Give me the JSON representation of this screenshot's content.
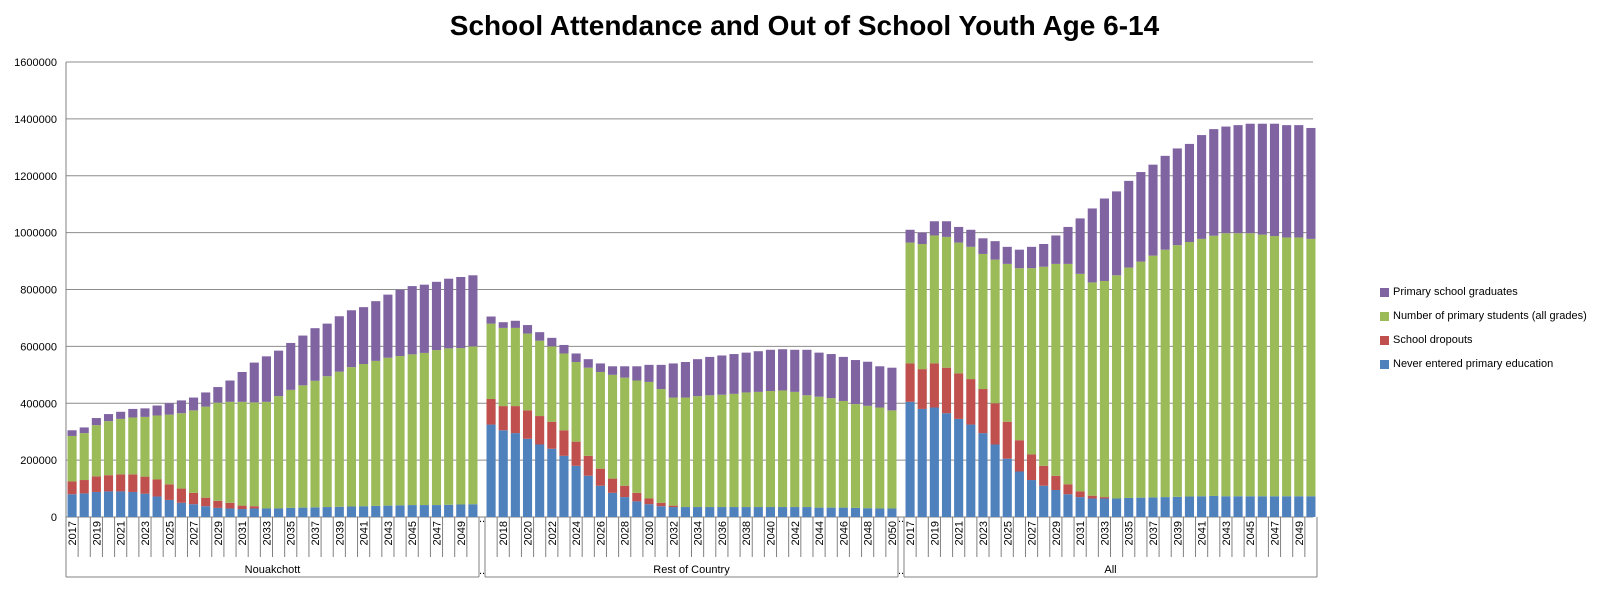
{
  "chart_data": {
    "type": "bar",
    "stacked": true,
    "title": "School Attendance and Out of School Youth Age 6-14",
    "xlabel": "",
    "ylabel": "",
    "ylim": [
      0,
      1600000
    ],
    "y_ticks": [
      0,
      200000,
      400000,
      600000,
      800000,
      1000000,
      1200000,
      1400000,
      1600000
    ],
    "y_tick_labels": [
      "0",
      "200000",
      "400000",
      "600000",
      "800000",
      "1000000",
      "1200000",
      "1400000",
      "1600000"
    ],
    "grid": true,
    "legend_position": "right",
    "groups": [
      {
        "name": "Nouakchott",
        "years": [
          "2017",
          "2018",
          "2019",
          "2020",
          "2021",
          "2022",
          "2023",
          "2024",
          "2025",
          "2026",
          "2027",
          "2028",
          "2029",
          "2030",
          "2031",
          "2032",
          "2033",
          "2034",
          "2035",
          "2036",
          "2037",
          "2038",
          "2039",
          "2040",
          "2041",
          "2042",
          "2043",
          "2044",
          "2045",
          "2046",
          "2047",
          "2048",
          "2049",
          "2050"
        ],
        "tick_labels": [
          "2017",
          "",
          "2019",
          "",
          "2021",
          "",
          "2023",
          "",
          "2025",
          "",
          "2027",
          "",
          "2029",
          "",
          "2031",
          "",
          "2033",
          "",
          "2035",
          "",
          "2037",
          "",
          "2039",
          "",
          "2041",
          "",
          "2043",
          "",
          "2045",
          "",
          "2047",
          "",
          "2049",
          ""
        ],
        "series": {
          "never": [
            80000,
            83000,
            88000,
            90000,
            90000,
            88000,
            82000,
            72000,
            60000,
            50000,
            45000,
            38000,
            32000,
            30000,
            28000,
            30000,
            30000,
            30000,
            32000,
            33000,
            34000,
            35000,
            36000,
            37000,
            38000,
            39000,
            40000,
            41000,
            42000,
            42000,
            42000,
            43000,
            44000,
            45000
          ],
          "dropouts": [
            45000,
            47000,
            55000,
            57000,
            60000,
            62000,
            60000,
            60000,
            55000,
            50000,
            40000,
            30000,
            25000,
            20000,
            12000,
            8000,
            0,
            0,
            0,
            0,
            0,
            0,
            0,
            0,
            0,
            0,
            0,
            0,
            0,
            0,
            0,
            0,
            0,
            0
          ],
          "students": [
            160000,
            165000,
            180000,
            190000,
            195000,
            200000,
            210000,
            225000,
            245000,
            265000,
            290000,
            320000,
            345000,
            355000,
            365000,
            365000,
            375000,
            395000,
            415000,
            430000,
            445000,
            460000,
            475000,
            490000,
            500000,
            510000,
            520000,
            525000,
            530000,
            535000,
            545000,
            550000,
            550000,
            555000
          ],
          "graduates": [
            20000,
            20000,
            25000,
            25000,
            25000,
            30000,
            30000,
            35000,
            40000,
            45000,
            45000,
            50000,
            55000,
            75000,
            105000,
            140000,
            160000,
            160000,
            165000,
            175000,
            185000,
            185000,
            195000,
            200000,
            200000,
            210000,
            222000,
            233000,
            240000,
            240000,
            240000,
            245000,
            250000,
            250000
          ]
        }
      },
      {
        "name": "Rest of Country",
        "years": [
          "2017",
          "2018",
          "2019",
          "2020",
          "2021",
          "2022",
          "2023",
          "2024",
          "2025",
          "2026",
          "2027",
          "2028",
          "2029",
          "2030",
          "2031",
          "2032",
          "2033",
          "2034",
          "2035",
          "2036",
          "2037",
          "2038",
          "2039",
          "2040",
          "2041",
          "2042",
          "2043",
          "2044",
          "2045",
          "2046",
          "2047",
          "2048",
          "2049",
          "2050"
        ],
        "tick_labels": [
          "",
          "2018",
          "",
          "2020",
          "",
          "2022",
          "",
          "2024",
          "",
          "2026",
          "",
          "2028",
          "",
          "2030",
          "",
          "2032",
          "",
          "2034",
          "",
          "2036",
          "",
          "2038",
          "",
          "2040",
          "",
          "2042",
          "",
          "2044",
          "",
          "2046",
          "",
          "2048",
          "",
          "2050"
        ],
        "series": {
          "never": [
            325000,
            305000,
            295000,
            275000,
            255000,
            240000,
            215000,
            180000,
            145000,
            110000,
            85000,
            70000,
            55000,
            45000,
            38000,
            35000,
            35000,
            35000,
            35000,
            35000,
            35000,
            35000,
            35000,
            35000,
            35000,
            35000,
            35000,
            33000,
            33000,
            33000,
            32000,
            31000,
            30000,
            30000
          ],
          "dropouts": [
            90000,
            85000,
            95000,
            100000,
            100000,
            95000,
            90000,
            85000,
            70000,
            60000,
            50000,
            40000,
            30000,
            20000,
            12000,
            5000,
            0,
            0,
            0,
            0,
            0,
            0,
            0,
            0,
            0,
            0,
            0,
            0,
            0,
            0,
            0,
            0,
            0,
            0
          ],
          "students": [
            265000,
            275000,
            275000,
            270000,
            265000,
            265000,
            270000,
            280000,
            310000,
            340000,
            365000,
            380000,
            395000,
            410000,
            400000,
            380000,
            385000,
            390000,
            393000,
            395000,
            398000,
            403000,
            405000,
            408000,
            410000,
            405000,
            393000,
            390000,
            385000,
            375000,
            365000,
            360000,
            355000,
            345000
          ],
          "graduates": [
            25000,
            20000,
            25000,
            30000,
            30000,
            30000,
            30000,
            30000,
            30000,
            30000,
            30000,
            40000,
            50000,
            60000,
            85000,
            120000,
            125000,
            130000,
            135000,
            138000,
            140000,
            140000,
            143000,
            145000,
            145000,
            148000,
            160000,
            155000,
            155000,
            155000,
            155000,
            155000,
            145000,
            150000
          ]
        }
      },
      {
        "name": "All",
        "years": [
          "2017",
          "2018",
          "2019",
          "2020",
          "2021",
          "2022",
          "2023",
          "2024",
          "2025",
          "2026",
          "2027",
          "2028",
          "2029",
          "2030",
          "2031",
          "2032",
          "2033",
          "2034",
          "2035",
          "2036",
          "2037",
          "2038",
          "2039",
          "2040",
          "2041",
          "2042",
          "2043",
          "2044",
          "2045",
          "2046",
          "2047",
          "2048",
          "2049",
          "2050"
        ],
        "tick_labels": [
          "2017",
          "",
          "2019",
          "",
          "2021",
          "",
          "2023",
          "",
          "2025",
          "",
          "2027",
          "",
          "2029",
          "",
          "2031",
          "",
          "2033",
          "",
          "2035",
          "",
          "2037",
          "",
          "2039",
          "",
          "2041",
          "",
          "2043",
          "",
          "2045",
          "",
          "2047",
          "",
          "2049",
          ""
        ],
        "series": {
          "never": [
            405000,
            380000,
            385000,
            365000,
            345000,
            325000,
            295000,
            255000,
            205000,
            160000,
            130000,
            110000,
            95000,
            80000,
            70000,
            65000,
            65000,
            65000,
            67000,
            68000,
            69000,
            70000,
            71000,
            72000,
            73000,
            74000,
            73000,
            73000,
            73000,
            73000,
            73000,
            73000,
            73000,
            73000
          ],
          "dropouts": [
            135000,
            140000,
            155000,
            160000,
            160000,
            160000,
            155000,
            145000,
            130000,
            110000,
            90000,
            70000,
            50000,
            35000,
            20000,
            10000,
            5000,
            0,
            0,
            0,
            0,
            0,
            0,
            0,
            0,
            0,
            0,
            0,
            0,
            0,
            0,
            0,
            0,
            0
          ],
          "students": [
            425000,
            440000,
            450000,
            460000,
            460000,
            465000,
            475000,
            505000,
            555000,
            605000,
            655000,
            700000,
            745000,
            775000,
            765000,
            750000,
            760000,
            785000,
            810000,
            830000,
            850000,
            870000,
            885000,
            895000,
            905000,
            915000,
            925000,
            925000,
            925000,
            920000,
            915000,
            910000,
            910000,
            905000
          ],
          "graduates": [
            45000,
            40000,
            50000,
            55000,
            55000,
            60000,
            55000,
            65000,
            60000,
            65000,
            75000,
            80000,
            100000,
            130000,
            195000,
            260000,
            290000,
            295000,
            305000,
            315000,
            320000,
            330000,
            340000,
            345000,
            365000,
            375000,
            375000,
            380000,
            385000,
            390000,
            395000,
            395000,
            395000,
            390000
          ]
        }
      }
    ],
    "separator_labels": [
      "..",
      ".."
    ],
    "legend": [
      {
        "key": "graduates",
        "label": "Primary school graduates",
        "color": "#8064A2"
      },
      {
        "key": "students",
        "label": "Number of primary students (all grades)",
        "color": "#9BBB59"
      },
      {
        "key": "dropouts",
        "label": "School dropouts",
        "color": "#C0504D"
      },
      {
        "key": "never",
        "label": "Never entered primary education",
        "color": "#4F81BD"
      }
    ]
  }
}
